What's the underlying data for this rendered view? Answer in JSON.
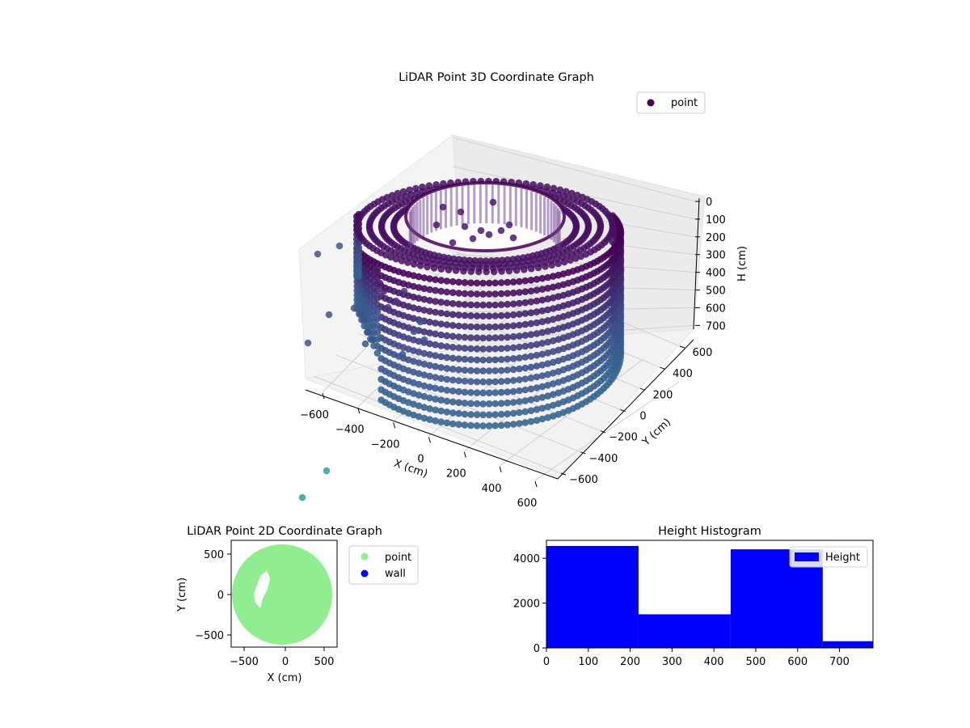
{
  "chart_data": [
    {
      "type": "scatter3d",
      "title": "LiDAR Point 3D Coordinate Graph",
      "xlabel": "X (cm)",
      "ylabel": "Y (cm)",
      "zlabel": "H (cm)",
      "xlim": [
        -700,
        650
      ],
      "ylim": [
        -650,
        650
      ],
      "zlim": [
        780,
        0
      ],
      "xticks": [
        "−600",
        "−400",
        "−200",
        "0",
        "200",
        "400",
        "600"
      ],
      "yticks": [
        "−600",
        "−400",
        "−200",
        "0",
        "200",
        "400",
        "600"
      ],
      "zticks": [
        "0",
        "100",
        "200",
        "300",
        "400",
        "500",
        "600",
        "700"
      ],
      "legend": {
        "placement": "top-right",
        "entries": [
          "point"
        ]
      },
      "colors": {
        "top": "#440154",
        "mid": "#3b528b",
        "low": "#31688e",
        "outlier": "#35a09a"
      },
      "grid": true
    },
    {
      "type": "scatter",
      "title": "LiDAR Point 2D Coordinate Graph",
      "xlabel": "X (cm)",
      "ylabel": "Y (cm)",
      "xlim": [
        -660,
        650
      ],
      "ylim": [
        -660,
        660
      ],
      "xticks": [
        "−500",
        "0",
        "500"
      ],
      "yticks": [
        "−500",
        "0",
        "500"
      ],
      "legend": {
        "placement": "outside-right",
        "entries": [
          "point",
          "wall"
        ]
      },
      "series": [
        {
          "name": "point",
          "color": "#90ee90"
        },
        {
          "name": "wall",
          "color": "#0000ff"
        }
      ]
    },
    {
      "type": "bar",
      "title": "Height Histogram",
      "xlim": [
        0,
        780
      ],
      "ylim": [
        0,
        4800
      ],
      "xticks": [
        "0",
        "100",
        "200",
        "300",
        "400",
        "500",
        "600",
        "700"
      ],
      "yticks": [
        "0",
        "2000",
        "4000"
      ],
      "bins": [
        {
          "x0": 0,
          "x1": 220,
          "value": 4550
        },
        {
          "x0": 220,
          "x1": 440,
          "value": 1500
        },
        {
          "x0": 440,
          "x1": 660,
          "value": 4400
        },
        {
          "x0": 660,
          "x1": 780,
          "value": 300
        }
      ],
      "legend": {
        "placement": "top-right",
        "entries": [
          "Height"
        ]
      },
      "color": "#0000ff"
    }
  ]
}
